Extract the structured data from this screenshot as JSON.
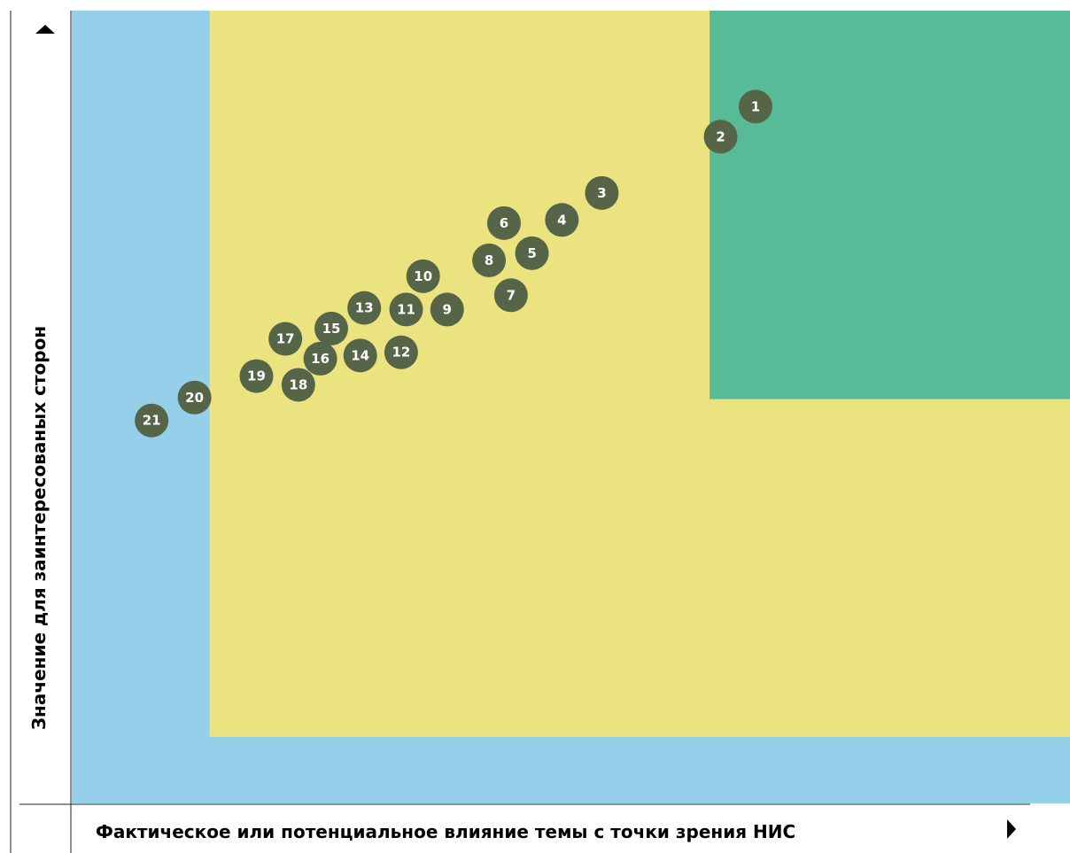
{
  "chart_data": {
    "type": "scatter",
    "title": "",
    "xlabel": "Фактическое или потенциальное влияние темы с точки зрения НИС",
    "ylabel": "Значение для заинтересованых сторон",
    "xlim": [
      0,
      100
    ],
    "ylim": [
      0,
      100
    ],
    "grid": false,
    "zones": [
      {
        "name": "low",
        "x": [
          0,
          100
        ],
        "y": [
          0,
          100
        ],
        "color": "#96CFEA"
      },
      {
        "name": "medium",
        "x": [
          13.8,
          100
        ],
        "y": [
          8.4,
          100
        ],
        "color": "#EBE37F"
      },
      {
        "name": "high",
        "x": [
          63.9,
          100
        ],
        "y": [
          51.0,
          100
        ],
        "color": "#58BB98"
      }
    ],
    "point_color": "#566447",
    "point_label_color": "#ffffff",
    "points": [
      {
        "label": "1",
        "x": 68.5,
        "y": 87.9
      },
      {
        "label": "2",
        "x": 65.0,
        "y": 84.1
      },
      {
        "label": "3",
        "x": 53.1,
        "y": 77.0
      },
      {
        "label": "4",
        "x": 49.1,
        "y": 73.6
      },
      {
        "label": "5",
        "x": 46.1,
        "y": 69.4
      },
      {
        "label": "6",
        "x": 43.3,
        "y": 73.2
      },
      {
        "label": "7",
        "x": 44.0,
        "y": 64.1
      },
      {
        "label": "8",
        "x": 41.8,
        "y": 68.5
      },
      {
        "label": "9",
        "x": 37.6,
        "y": 62.3
      },
      {
        "label": "10",
        "x": 35.2,
        "y": 66.5
      },
      {
        "label": "11",
        "x": 33.5,
        "y": 62.3
      },
      {
        "label": "12",
        "x": 33.0,
        "y": 56.9
      },
      {
        "label": "13",
        "x": 29.3,
        "y": 62.5
      },
      {
        "label": "14",
        "x": 28.9,
        "y": 56.5
      },
      {
        "label": "15",
        "x": 26.0,
        "y": 59.9
      },
      {
        "label": "16",
        "x": 24.9,
        "y": 56.1
      },
      {
        "label": "17",
        "x": 21.4,
        "y": 58.6
      },
      {
        "label": "18",
        "x": 22.7,
        "y": 52.8
      },
      {
        "label": "19",
        "x": 18.5,
        "y": 53.9
      },
      {
        "label": "20",
        "x": 12.3,
        "y": 51.2
      },
      {
        "label": "21",
        "x": 8.0,
        "y": 48.3
      }
    ]
  }
}
